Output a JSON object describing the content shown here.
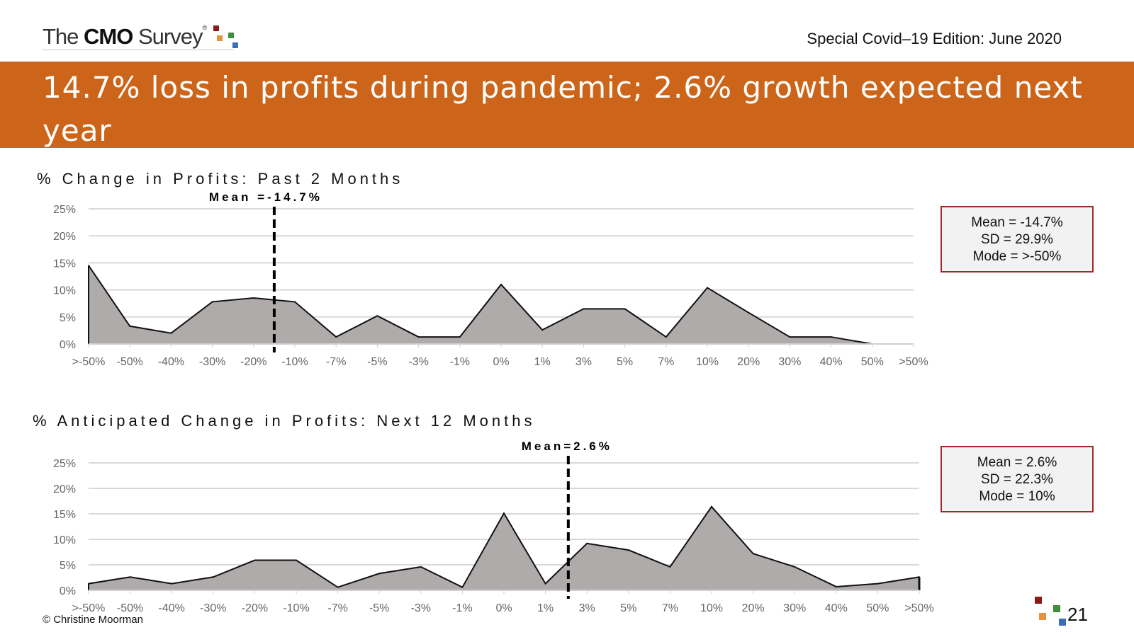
{
  "header": {
    "logo_light": "The ",
    "logo_bold": "CMO",
    "logo_tail": " Survey",
    "logo_reg": "®",
    "edition": "Special Covid–19 Edition: June 2020"
  },
  "banner": {
    "title": "14.7% loss in profits during pandemic; 2.6% growth expected next year"
  },
  "colors": {
    "banner": "#cc6519",
    "area_fill": "#afabab",
    "box_border": "#9b2c2c",
    "logo_red": "#8b1a1a",
    "logo_orange": "#e8913a",
    "logo_green": "#3f8f3f",
    "logo_blue": "#3a6fb5"
  },
  "chart_data": [
    {
      "type": "area",
      "title": "% Change in Profits: Past 2 Months",
      "categories": [
        ">-50%",
        "-50%",
        "-40%",
        "-30%",
        "-20%",
        "-10%",
        "-7%",
        "-5%",
        "-3%",
        "-1%",
        "0%",
        "1%",
        "3%",
        "5%",
        "7%",
        "10%",
        "20%",
        "30%",
        "40%",
        "50%",
        ">50%"
      ],
      "values": [
        14.5,
        3.3,
        2.0,
        7.8,
        8.5,
        7.8,
        1.3,
        5.2,
        1.3,
        1.3,
        11.0,
        2.6,
        6.5,
        6.5,
        1.3,
        10.4,
        5.8,
        1.3,
        1.3,
        0.0,
        null
      ],
      "y_ticks": [
        "0%",
        "5%",
        "10%",
        "15%",
        "20%",
        "25%"
      ],
      "ylim": [
        0,
        25
      ],
      "mean_label": "Mean =-14.7%",
      "mean_position_index": 4.5,
      "stats": [
        "Mean = -14.7%",
        "SD = 29.9%",
        "Mode = >-50%"
      ]
    },
    {
      "type": "area",
      "title": "% Anticipated Change in Profits: Next 12 Months",
      "categories": [
        ">-50%",
        "-50%",
        "-40%",
        "-30%",
        "-20%",
        "-10%",
        "-7%",
        "-5%",
        "-3%",
        "-1%",
        "0%",
        "1%",
        "3%",
        "5%",
        "7%",
        "10%",
        "20%",
        "30%",
        "40%",
        "50%",
        ">50%"
      ],
      "values": [
        1.3,
        2.6,
        1.3,
        2.6,
        5.9,
        5.9,
        0.6,
        3.3,
        4.6,
        0.6,
        15.1,
        1.3,
        9.2,
        7.9,
        4.6,
        16.4,
        7.2,
        4.6,
        0.7,
        1.3,
        2.6
      ],
      "y_ticks": [
        "0%",
        "5%",
        "10%",
        "15%",
        "20%",
        "25%"
      ],
      "ylim": [
        0,
        25
      ],
      "mean_label": "Mean=2.6%",
      "mean_position_index": 11.55,
      "stats": [
        "Mean = 2.6%",
        "SD = 22.3%",
        "Mode = 10%"
      ]
    }
  ],
  "footer": {
    "copyright": "© Christine Moorman",
    "page_number": "21"
  }
}
